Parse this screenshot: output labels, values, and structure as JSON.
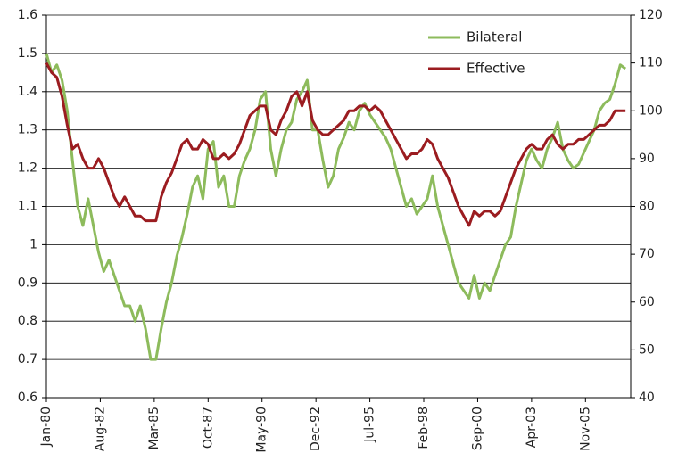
{
  "chart_data": {
    "type": "line",
    "x": [
      1980,
      1980.25,
      1980.5,
      1980.75,
      1981,
      1981.25,
      1981.5,
      1981.75,
      1982,
      1982.25,
      1982.5,
      1982.75,
      1983,
      1983.25,
      1983.5,
      1983.75,
      1984,
      1984.25,
      1984.5,
      1984.75,
      1985,
      1985.25,
      1985.5,
      1985.75,
      1986,
      1986.25,
      1986.5,
      1986.75,
      1987,
      1987.25,
      1987.5,
      1987.75,
      1988,
      1988.25,
      1988.5,
      1988.75,
      1989,
      1989.25,
      1989.5,
      1989.75,
      1990,
      1990.25,
      1990.5,
      1990.75,
      1991,
      1991.25,
      1991.5,
      1991.75,
      1992,
      1992.25,
      1992.5,
      1992.75,
      1993,
      1993.25,
      1993.5,
      1993.75,
      1994,
      1994.25,
      1994.5,
      1994.75,
      1995,
      1995.25,
      1995.5,
      1995.75,
      1996,
      1996.25,
      1996.5,
      1996.75,
      1997,
      1997.25,
      1997.5,
      1997.75,
      1998,
      1998.25,
      1998.5,
      1998.75,
      1999,
      1999.25,
      1999.5,
      1999.75,
      2000,
      2000.25,
      2000.5,
      2000.75,
      2001,
      2001.25,
      2001.5,
      2001.75,
      2002,
      2002.25,
      2002.5,
      2002.75,
      2003,
      2003.25,
      2003.5,
      2003.75,
      2004,
      2004.25,
      2004.5,
      2004.75,
      2005,
      2005.25,
      2005.5,
      2005.75,
      2006,
      2006.25,
      2006.5,
      2006.75,
      2007,
      2007.25,
      2007.5,
      2007.75
    ],
    "series": [
      {
        "name": "Bilateral",
        "color": "#8dbb5c",
        "axis": "y",
        "values": [
          1.5,
          1.45,
          1.47,
          1.43,
          1.35,
          1.22,
          1.1,
          1.05,
          1.12,
          1.05,
          0.98,
          0.93,
          0.96,
          0.92,
          0.88,
          0.84,
          0.84,
          0.8,
          0.84,
          0.78,
          0.7,
          0.7,
          0.78,
          0.85,
          0.9,
          0.97,
          1.02,
          1.08,
          1.15,
          1.18,
          1.12,
          1.25,
          1.27,
          1.15,
          1.18,
          1.1,
          1.1,
          1.18,
          1.22,
          1.25,
          1.3,
          1.38,
          1.4,
          1.25,
          1.18,
          1.25,
          1.3,
          1.32,
          1.38,
          1.4,
          1.43,
          1.3,
          1.3,
          1.22,
          1.15,
          1.18,
          1.25,
          1.28,
          1.32,
          1.3,
          1.35,
          1.37,
          1.34,
          1.32,
          1.3,
          1.28,
          1.25,
          1.2,
          1.15,
          1.1,
          1.12,
          1.08,
          1.1,
          1.12,
          1.18,
          1.1,
          1.05,
          1.0,
          0.95,
          0.9,
          0.88,
          0.86,
          0.92,
          0.86,
          0.9,
          0.88,
          0.92,
          0.96,
          1.0,
          1.02,
          1.1,
          1.16,
          1.22,
          1.25,
          1.22,
          1.2,
          1.25,
          1.28,
          1.32,
          1.25,
          1.22,
          1.2,
          1.21,
          1.24,
          1.27,
          1.3,
          1.35,
          1.37,
          1.38,
          1.42,
          1.47,
          1.46
        ]
      },
      {
        "name": "Effective",
        "color": "#9b1c20",
        "axis": "y2",
        "values": [
          110,
          108,
          107,
          103,
          97,
          92,
          93,
          90,
          88,
          88,
          90,
          88,
          85,
          82,
          80,
          82,
          80,
          78,
          78,
          77,
          77,
          77,
          82,
          85,
          87,
          90,
          93,
          94,
          92,
          92,
          94,
          93,
          90,
          90,
          91,
          90,
          91,
          93,
          96,
          99,
          100,
          101,
          101,
          96,
          95,
          98,
          100,
          103,
          104,
          101,
          104,
          98,
          96,
          95,
          95,
          96,
          97,
          98,
          100,
          100,
          101,
          101,
          100,
          101,
          100,
          98,
          96,
          94,
          92,
          90,
          91,
          91,
          92,
          94,
          93,
          90,
          88,
          86,
          83,
          80,
          78,
          76,
          79,
          78,
          79,
          79,
          78,
          79,
          82,
          85,
          88,
          90,
          92,
          93,
          92,
          92,
          94,
          95,
          93,
          92,
          93,
          93,
          94,
          94,
          95,
          96,
          97,
          97,
          98,
          100,
          100,
          100
        ]
      }
    ],
    "xlim": [
      1980,
      2008
    ],
    "xticks": [
      {
        "value": 1980,
        "label": "Jan-80"
      },
      {
        "value": 1982.583,
        "label": "Aug-82"
      },
      {
        "value": 1985.167,
        "label": "Mar-85"
      },
      {
        "value": 1987.75,
        "label": "Oct-87"
      },
      {
        "value": 1990.333,
        "label": "May-90"
      },
      {
        "value": 1992.917,
        "label": "Dec-92"
      },
      {
        "value": 1995.5,
        "label": "Jul-95"
      },
      {
        "value": 1998.083,
        "label": "Feb-98"
      },
      {
        "value": 2000.667,
        "label": "Sep-00"
      },
      {
        "value": 2003.25,
        "label": "Apr-03"
      },
      {
        "value": 2005.833,
        "label": "Nov-05"
      }
    ],
    "ylim": [
      0.6,
      1.6
    ],
    "yticks": [
      0.6,
      0.7,
      0.8,
      0.9,
      1,
      1.1,
      1.2,
      1.3,
      1.4,
      1.5,
      1.6
    ],
    "y2lim": [
      40,
      120
    ],
    "y2ticks": [
      40,
      50,
      60,
      70,
      80,
      90,
      100,
      110,
      120
    ],
    "grid": true,
    "legend": "top"
  }
}
